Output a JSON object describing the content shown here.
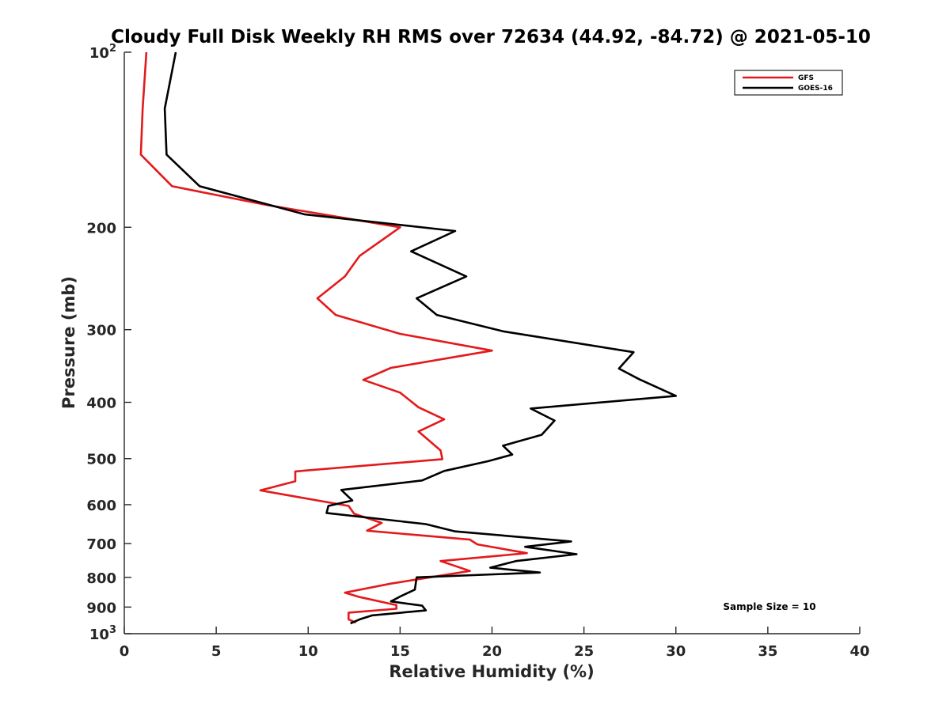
{
  "chart_data": {
    "type": "line",
    "title": "Cloudy Full Disk Weekly RH RMS over 72634 (44.92, -84.72) @ 2021-05-10",
    "xlabel": "Relative Humidity (%)",
    "ylabel": "Pressure (mb)",
    "xlim": [
      0,
      40
    ],
    "ylim": [
      100,
      1000
    ],
    "yscale": "log",
    "y_reversed": true,
    "x_ticks": [
      "0",
      "5",
      "10",
      "15",
      "20",
      "25",
      "30",
      "35",
      "40"
    ],
    "x_tick_values": [
      0,
      5,
      10,
      15,
      20,
      25,
      30,
      35,
      40
    ],
    "y_ticks": [
      {
        "value": 100,
        "base": "10",
        "exp": "2"
      },
      {
        "value": 200,
        "label": "200"
      },
      {
        "value": 300,
        "label": "300"
      },
      {
        "value": 400,
        "label": "400"
      },
      {
        "value": 500,
        "label": "500"
      },
      {
        "value": 600,
        "label": "600"
      },
      {
        "value": 700,
        "label": "700"
      },
      {
        "value": 800,
        "label": "800"
      },
      {
        "value": 900,
        "label": "900"
      },
      {
        "value": 1000,
        "base": "10",
        "exp": "3"
      }
    ],
    "grid": false,
    "legend_position": "top-right",
    "annotation": "Sample Size = 10",
    "series": [
      {
        "name": "GFS",
        "color": "#e31a1c",
        "points": [
          [
            1.2,
            100
          ],
          [
            1.0,
            125
          ],
          [
            0.9,
            150
          ],
          [
            2.6,
            170
          ],
          [
            7.7,
            183
          ],
          [
            15.0,
            200
          ],
          [
            12.8,
            224
          ],
          [
            12.0,
            243
          ],
          [
            10.5,
            265
          ],
          [
            11.5,
            283
          ],
          [
            15.0,
            305
          ],
          [
            20.0,
            326
          ],
          [
            14.5,
            349
          ],
          [
            13.0,
            366
          ],
          [
            15.0,
            385
          ],
          [
            16.0,
            408
          ],
          [
            17.4,
            428
          ],
          [
            16.0,
            449
          ],
          [
            17.2,
            484
          ],
          [
            17.3,
            501
          ],
          [
            9.3,
            526
          ],
          [
            9.3,
            547
          ],
          [
            7.4,
            567
          ],
          [
            12.2,
            603
          ],
          [
            12.5,
            622
          ],
          [
            14.0,
            645
          ],
          [
            13.2,
            665
          ],
          [
            18.8,
            689
          ],
          [
            19.2,
            702
          ],
          [
            21.9,
            727
          ],
          [
            17.2,
            750
          ],
          [
            18.8,
            780
          ],
          [
            14.5,
            820
          ],
          [
            12.0,
            850
          ],
          [
            12.8,
            865
          ],
          [
            14.8,
            893
          ],
          [
            14.8,
            906
          ],
          [
            12.2,
            920
          ],
          [
            12.2,
            945
          ],
          [
            12.6,
            957
          ]
        ]
      },
      {
        "name": "GOES-16",
        "color": "#000000",
        "points": [
          [
            2.8,
            100
          ],
          [
            2.2,
            125
          ],
          [
            2.3,
            150
          ],
          [
            4.1,
            170
          ],
          [
            9.8,
            190
          ],
          [
            18.0,
            203
          ],
          [
            15.6,
            220
          ],
          [
            18.6,
            243
          ],
          [
            15.9,
            265
          ],
          [
            17.0,
            283
          ],
          [
            20.6,
            302
          ],
          [
            27.7,
            328
          ],
          [
            26.9,
            350
          ],
          [
            28.0,
            365
          ],
          [
            30.0,
            390
          ],
          [
            22.1,
            410
          ],
          [
            23.4,
            430
          ],
          [
            22.7,
            455
          ],
          [
            20.6,
            475
          ],
          [
            21.1,
            492
          ],
          [
            19.8,
            505
          ],
          [
            17.4,
            525
          ],
          [
            16.2,
            545
          ],
          [
            11.8,
            566
          ],
          [
            12.4,
            590
          ],
          [
            11.1,
            603
          ],
          [
            11.0,
            620
          ],
          [
            16.4,
            648
          ],
          [
            18.0,
            667
          ],
          [
            24.3,
            694
          ],
          [
            21.8,
            709
          ],
          [
            24.6,
            730
          ],
          [
            21.3,
            750
          ],
          [
            19.9,
            770
          ],
          [
            22.6,
            785
          ],
          [
            15.9,
            800
          ],
          [
            15.8,
            840
          ],
          [
            15.1,
            860
          ],
          [
            14.5,
            880
          ],
          [
            16.2,
            895
          ],
          [
            16.4,
            912
          ],
          [
            13.5,
            930
          ],
          [
            12.8,
            945
          ],
          [
            12.3,
            960
          ]
        ]
      }
    ]
  }
}
